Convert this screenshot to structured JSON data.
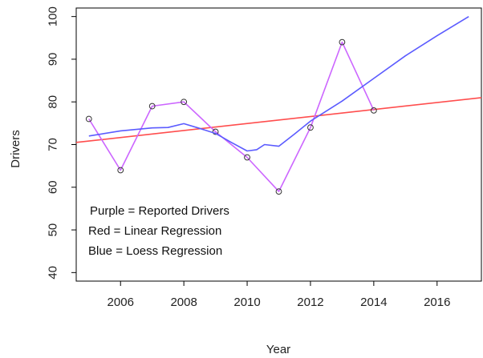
{
  "chart_data": {
    "type": "line",
    "title": "",
    "xlabel": "Year",
    "ylabel": "Drivers",
    "xlim": [
      2004.6,
      2017.4
    ],
    "ylim": [
      38,
      102
    ],
    "x_ticks": [
      2006,
      2008,
      2010,
      2012,
      2014,
      2016
    ],
    "y_ticks": [
      40,
      50,
      60,
      70,
      80,
      90,
      100
    ],
    "grid": false,
    "series": [
      {
        "kind": "reported",
        "color": "#cc66ff",
        "markers": "open-circle",
        "points": [
          [
            2005,
            76
          ],
          [
            2006,
            64
          ],
          [
            2007,
            79
          ],
          [
            2008,
            80
          ],
          [
            2009,
            73
          ],
          [
            2010,
            67
          ],
          [
            2011,
            59
          ],
          [
            2012,
            74
          ],
          [
            2013,
            94
          ],
          [
            2014,
            78
          ]
        ]
      },
      {
        "kind": "linear",
        "color": "#ff4d4d",
        "points": [
          [
            2004.6,
            70.5
          ],
          [
            2017.4,
            81
          ]
        ]
      },
      {
        "kind": "loess",
        "color": "#5b5bff",
        "points": [
          [
            2005,
            72
          ],
          [
            2006,
            73.2
          ],
          [
            2007,
            73.9
          ],
          [
            2007.5,
            74.0
          ],
          [
            2008,
            74.9
          ],
          [
            2008.5,
            73.8
          ],
          [
            2009,
            72.6
          ],
          [
            2009.5,
            70.5
          ],
          [
            2010,
            68.5
          ],
          [
            2010.3,
            68.8
          ],
          [
            2010.55,
            70.0
          ],
          [
            2011,
            69.6
          ],
          [
            2011.5,
            72.5
          ],
          [
            2012,
            75.5
          ],
          [
            2013,
            80.2
          ],
          [
            2014,
            85.5
          ],
          [
            2015,
            90.8
          ],
          [
            2016,
            95.5
          ],
          [
            2017,
            100
          ]
        ]
      }
    ],
    "annotations": [
      "Purple = Reported Drivers",
      "Red = Linear Regression",
      "Blue = Loess Regression"
    ]
  }
}
